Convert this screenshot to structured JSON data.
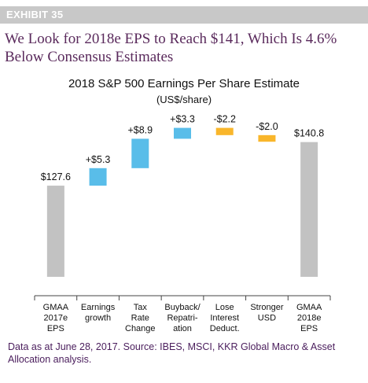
{
  "exhibit": {
    "label": "EXHIBIT 35"
  },
  "headline": "We Look for 2018e EPS to Reach $141, Which Is 4.6% Below Consensus Estimates",
  "footnote": "Data as at June 28, 2017. Source: IBES, MSCI, KKR Global Macro & Asset Allocation analysis.",
  "colors": {
    "total": "#c2c2c2",
    "increase": "#59bde9",
    "decrease": "#f9b62b",
    "headline": "#5a2a5c",
    "footnote": "#4a1d5c"
  },
  "chart_data": {
    "type": "bar",
    "subtype": "waterfall",
    "title": "2018 S&P 500 Earnings Per Share Estimate",
    "subtitle": "(US$/share)",
    "xlabel": "",
    "ylabel": "",
    "ylim": [
      100,
      150
    ],
    "grid": false,
    "legend": "none",
    "categories": [
      [
        "GMAA",
        "2017e",
        "EPS"
      ],
      [
        "Earnings",
        "growth"
      ],
      [
        "Tax",
        "Rate",
        "Change"
      ],
      [
        "Buyback/",
        "Repatri-",
        "ation"
      ],
      [
        "Lose",
        "Interest",
        "Deduct."
      ],
      [
        "Stronger",
        "USD"
      ],
      [
        "GMAA",
        "2018e",
        "EPS"
      ]
    ],
    "steps": [
      {
        "kind": "total",
        "value": 127.6,
        "label": "$127.6"
      },
      {
        "kind": "increase",
        "value": 5.3,
        "label": "+$5.3"
      },
      {
        "kind": "increase",
        "value": 8.9,
        "label": "+$8.9"
      },
      {
        "kind": "increase",
        "value": 3.3,
        "label": "+$3.3"
      },
      {
        "kind": "decrease",
        "value": -2.2,
        "label": "-$2.2"
      },
      {
        "kind": "decrease",
        "value": -2.0,
        "label": "-$2.0"
      },
      {
        "kind": "total",
        "value": 140.8,
        "label": "$140.8"
      }
    ]
  }
}
